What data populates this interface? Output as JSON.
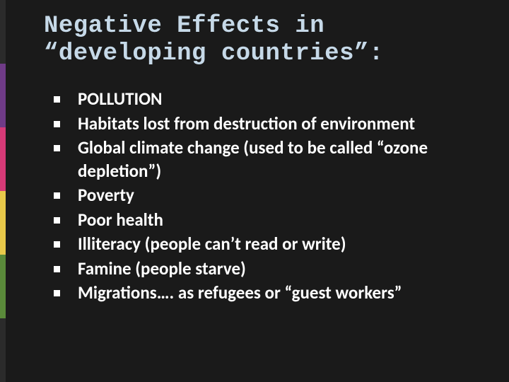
{
  "background_color": "#1a1a1a",
  "title_color": "#c6d9e8",
  "body_text_color": "#ffffff",
  "bullet_color": "#ffffff",
  "title_font": "Consolas",
  "body_font": "Calibri",
  "title_fontsize": 34,
  "body_fontsize": 25,
  "accent_colors": [
    "#2b2b2b",
    "#6f3b87",
    "#d63a77",
    "#e8c94a",
    "#5a8a3a",
    "#2b2b2b"
  ],
  "title": "Negative Effects in “developing countries”:",
  "bullets": [
    "POLLUTION",
    "Habitats lost from destruction of environment",
    "Global climate change  (used to be called “ozone depletion”)",
    "Poverty",
    "Poor health",
    "Illiteracy (people can’t read or write)",
    "Famine  (people starve)",
    "Migrations…. as refugees or “guest workers”"
  ]
}
